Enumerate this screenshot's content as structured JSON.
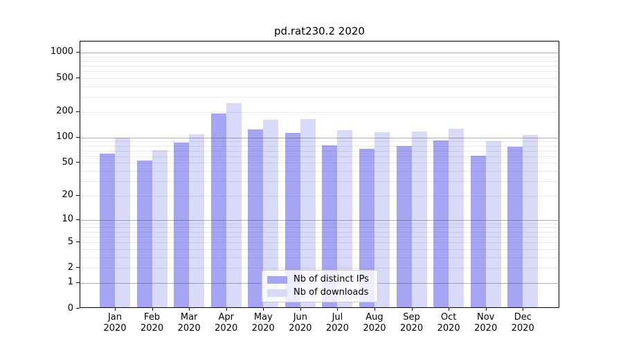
{
  "title": "pd.rat230.2 2020",
  "chart_data": {
    "type": "bar",
    "title": "pd.rat230.2 2020",
    "categories": [
      "Jan",
      "Feb",
      "Mar",
      "Apr",
      "May",
      "Jun",
      "Jul",
      "Aug",
      "Sep",
      "Oct",
      "Nov",
      "Dec"
    ],
    "category_year": "2020",
    "series": [
      {
        "name": "Nb of distinct IPs",
        "color": "#a5a5f3",
        "values": [
          65,
          53,
          88,
          192,
          124,
          113,
          81,
          74,
          79,
          93,
          61,
          78
        ]
      },
      {
        "name": "Nb of downloads",
        "color": "#d9d9f8",
        "values": [
          100,
          71,
          109,
          254,
          164,
          166,
          123,
          115,
          117,
          127,
          91,
          107
        ]
      }
    ],
    "yscale": "log10(1+x)",
    "ylim": [
      0,
      1340
    ],
    "yticks": [
      1000,
      500,
      200,
      100,
      50,
      20,
      10,
      5,
      2,
      1,
      0
    ],
    "grid": "horizontal, major decades dark gray, minor light gray",
    "legend_position": "lower center inside plot"
  },
  "legend": {
    "items": [
      {
        "label": "Nb of distinct IPs",
        "color": "#a5a5f3"
      },
      {
        "label": "Nb of downloads",
        "color": "#d9d9f8"
      }
    ]
  }
}
